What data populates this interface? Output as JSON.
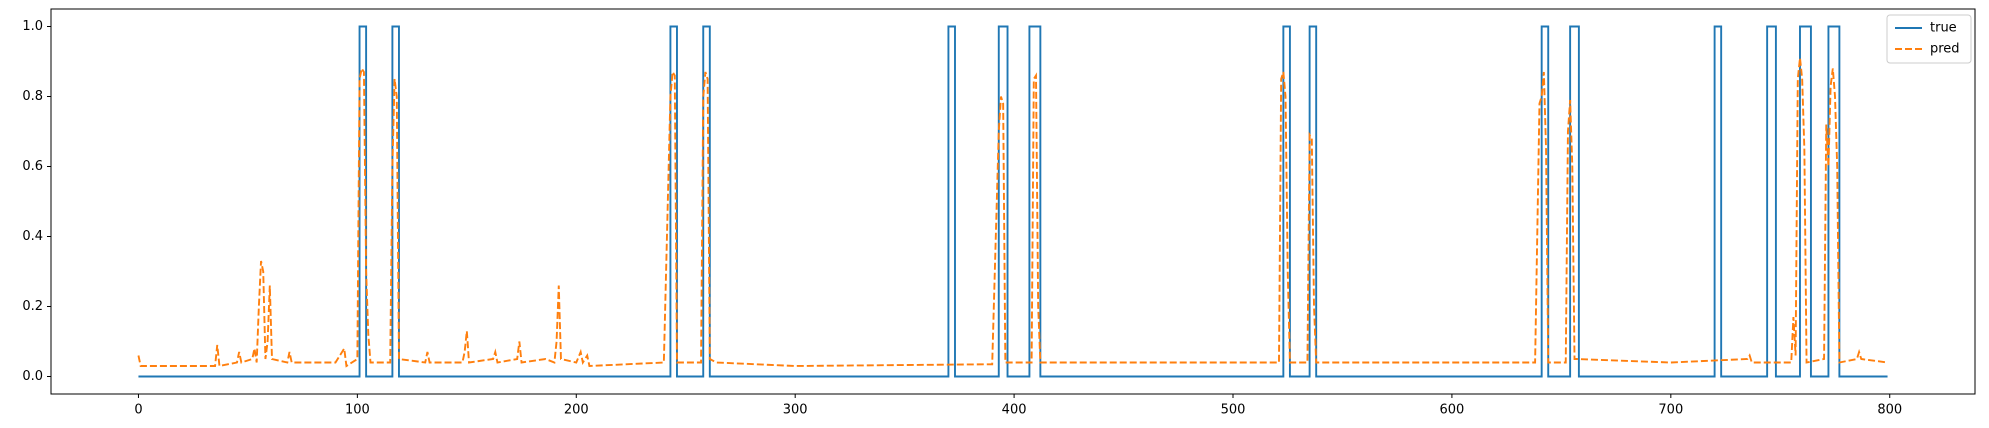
{
  "chart_data": {
    "type": "line",
    "xlim": [
      -39.95,
      838.95
    ],
    "ylim": [
      -0.05,
      1.05
    ],
    "xticks": [
      0,
      100,
      200,
      300,
      400,
      500,
      600,
      700,
      800
    ],
    "yticks": [
      {
        "value": 0,
        "label": "0.0"
      },
      0.2,
      0.4,
      0.6,
      0.8,
      {
        "value": 1,
        "label": "1.0"
      }
    ],
    "legend": "upper right",
    "series": [
      {
        "name": "true",
        "color": "#1f77b4",
        "dash": "solid",
        "x": [
          0,
          101,
          101,
          104,
          104,
          116,
          116,
          119,
          119,
          243,
          243,
          246,
          246,
          258,
          258,
          261,
          261,
          370,
          370,
          373,
          373,
          393,
          393,
          397,
          397,
          407,
          407,
          412,
          412,
          523,
          523,
          526,
          526,
          535,
          535,
          538,
          538,
          641,
          641,
          644,
          644,
          654,
          654,
          658,
          658,
          720,
          720,
          723,
          723,
          744,
          744,
          748,
          748,
          759,
          759,
          764,
          764,
          772,
          772,
          777,
          777,
          799
        ],
        "values": [
          0,
          0,
          1,
          1,
          0,
          0,
          1,
          1,
          0,
          0,
          1,
          1,
          0,
          0,
          1,
          1,
          0,
          0,
          1,
          1,
          0,
          0,
          1,
          1,
          0,
          0,
          1,
          1,
          0,
          0,
          1,
          1,
          0,
          0,
          1,
          1,
          0,
          0,
          1,
          1,
          0,
          0,
          1,
          1,
          0,
          0,
          1,
          1,
          0,
          0,
          1,
          1,
          0,
          0,
          1,
          1,
          0,
          0,
          1,
          1,
          0,
          0
        ]
      },
      {
        "name": "pred",
        "color": "#ff7f0e",
        "dash": "dashed",
        "x": [
          0,
          1,
          20,
          35,
          36,
          37,
          45,
          46,
          47,
          52,
          53,
          54,
          55,
          56,
          57,
          58,
          59,
          60,
          61,
          68,
          69,
          70,
          90,
          94,
          95,
          100,
          101,
          102,
          103,
          104,
          105,
          106,
          115,
          116,
          117,
          118,
          119,
          131,
          132,
          133,
          148,
          149,
          150,
          151,
          162,
          163,
          164,
          173,
          174,
          175,
          186,
          190,
          191,
          192,
          193,
          200,
          202,
          203,
          205,
          206,
          240,
          243,
          244,
          245,
          246,
          257,
          258,
          259,
          260,
          261,
          264,
          300,
          390,
          393,
          394,
          395,
          396,
          408,
          409,
          410,
          411,
          412,
          500,
          521,
          522,
          523,
          524,
          525,
          526,
          534,
          535,
          536,
          537,
          538,
          638,
          640,
          641,
          642,
          643,
          644,
          652,
          653,
          654,
          655,
          656,
          657,
          700,
          735,
          736,
          737,
          755,
          756,
          757,
          758,
          759,
          760,
          761,
          762,
          770,
          771,
          772,
          773,
          774,
          775,
          776,
          777,
          785,
          786,
          787,
          799
        ],
        "values": [
          0.06,
          0.03,
          0.03,
          0.03,
          0.09,
          0.03,
          0.04,
          0.07,
          0.04,
          0.05,
          0.08,
          0.04,
          0.2,
          0.33,
          0.3,
          0.05,
          0.1,
          0.26,
          0.05,
          0.04,
          0.07,
          0.04,
          0.04,
          0.08,
          0.03,
          0.05,
          0.85,
          0.88,
          0.87,
          0.3,
          0.12,
          0.04,
          0.04,
          0.6,
          0.85,
          0.8,
          0.05,
          0.04,
          0.07,
          0.04,
          0.04,
          0.07,
          0.13,
          0.04,
          0.05,
          0.07,
          0.04,
          0.05,
          0.1,
          0.04,
          0.05,
          0.04,
          0.1,
          0.26,
          0.05,
          0.04,
          0.07,
          0.04,
          0.06,
          0.03,
          0.04,
          0.8,
          0.87,
          0.86,
          0.04,
          0.04,
          0.8,
          0.87,
          0.85,
          0.05,
          0.04,
          0.03,
          0.035,
          0.7,
          0.8,
          0.78,
          0.04,
          0.04,
          0.85,
          0.86,
          0.2,
          0.04,
          0.04,
          0.04,
          0.85,
          0.87,
          0.8,
          0.3,
          0.04,
          0.04,
          0.69,
          0.68,
          0.2,
          0.04,
          0.04,
          0.78,
          0.8,
          0.87,
          0.65,
          0.04,
          0.04,
          0.7,
          0.79,
          0.6,
          0.05,
          0.05,
          0.04,
          0.05,
          0.06,
          0.04,
          0.04,
          0.17,
          0.06,
          0.85,
          0.91,
          0.85,
          0.65,
          0.04,
          0.05,
          0.72,
          0.6,
          0.83,
          0.88,
          0.8,
          0.6,
          0.04,
          0.05,
          0.07,
          0.05,
          0.04
        ]
      }
    ]
  }
}
